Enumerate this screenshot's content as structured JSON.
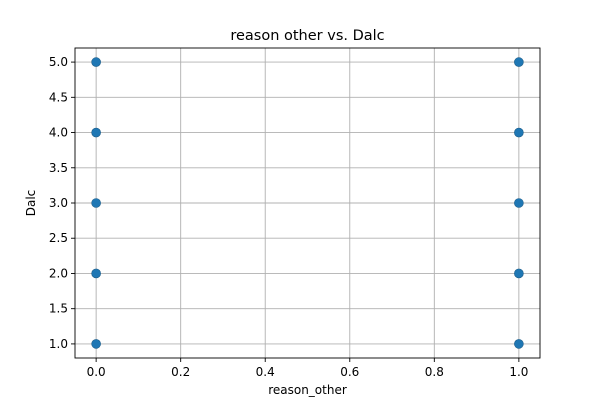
{
  "chart_data": {
    "type": "scatter",
    "title": "reason other vs. Dalc",
    "xlabel": "reason_other",
    "ylabel": "Dalc",
    "xlim": [
      -0.05,
      1.05
    ],
    "ylim": [
      0.8,
      5.2
    ],
    "xticks": [
      "0.0",
      "0.2",
      "0.4",
      "0.6",
      "0.8",
      "1.0"
    ],
    "yticks": [
      "1.0",
      "1.5",
      "2.0",
      "2.5",
      "3.0",
      "3.5",
      "4.0",
      "4.5",
      "5.0"
    ],
    "grid": true,
    "color": "#1f77b4",
    "points": [
      {
        "x": 0,
        "y": 1
      },
      {
        "x": 0,
        "y": 2
      },
      {
        "x": 0,
        "y": 3
      },
      {
        "x": 0,
        "y": 4
      },
      {
        "x": 0,
        "y": 5
      },
      {
        "x": 1,
        "y": 1
      },
      {
        "x": 1,
        "y": 2
      },
      {
        "x": 1,
        "y": 3
      },
      {
        "x": 1,
        "y": 4
      },
      {
        "x": 1,
        "y": 5
      }
    ]
  }
}
